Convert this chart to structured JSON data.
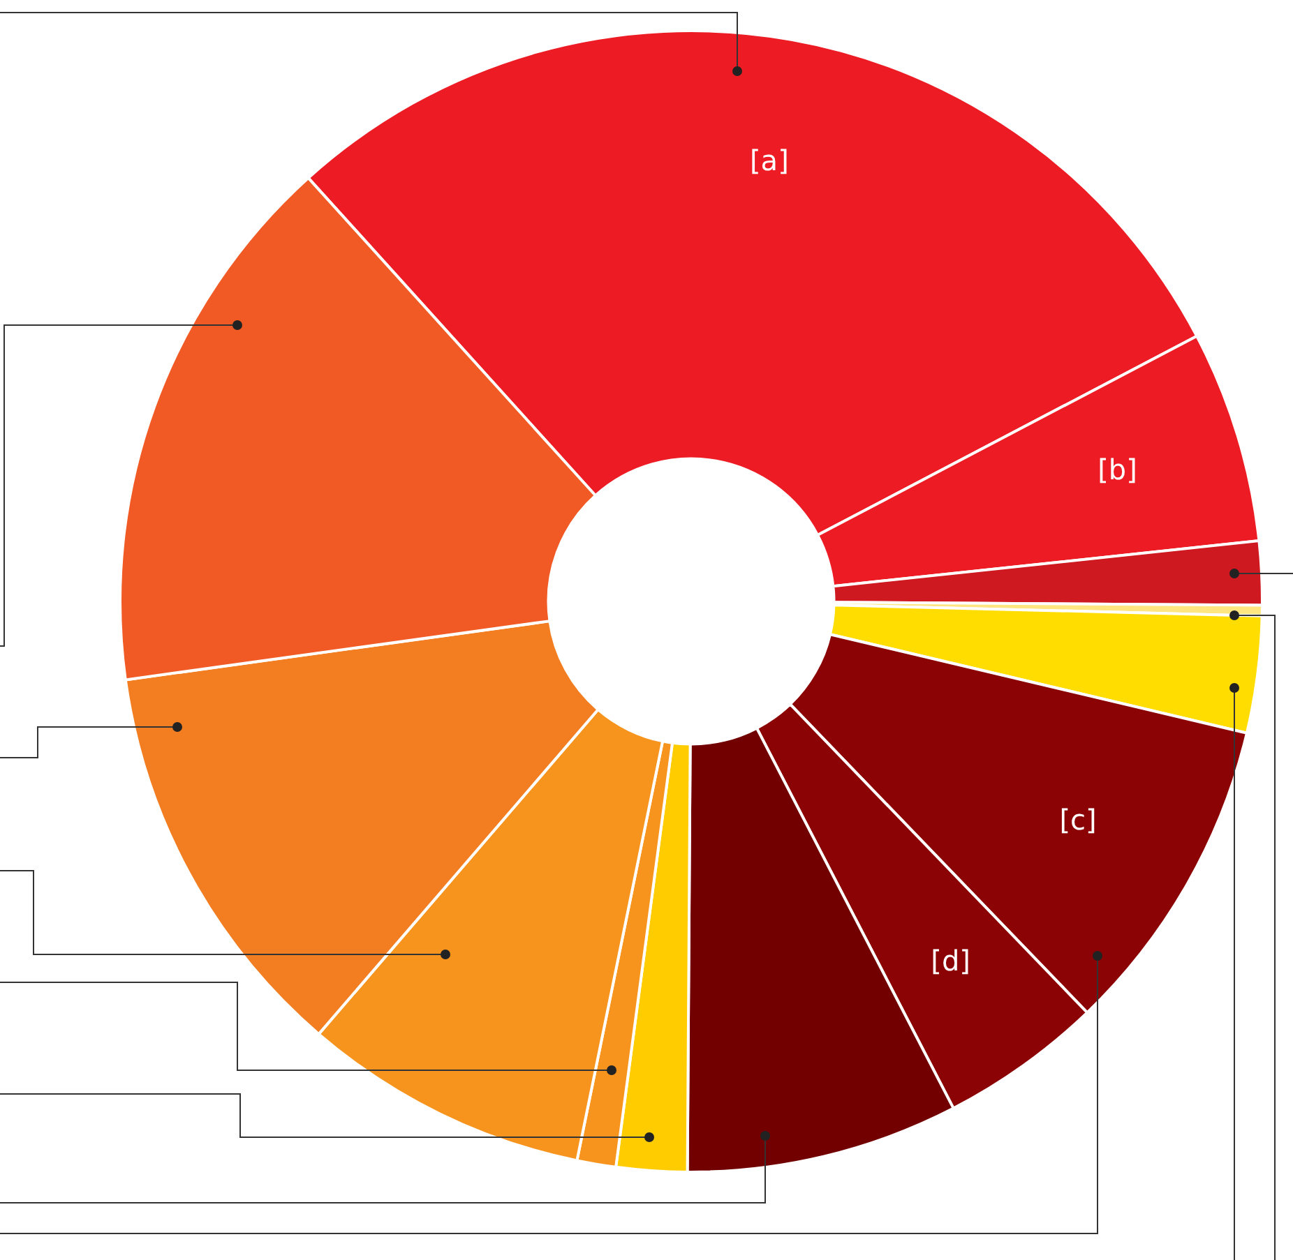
{
  "chart_data": {
    "type": "donut",
    "categories": [
      "[a]",
      "[b]",
      null,
      null,
      null,
      "[c]",
      "[d]",
      null,
      null,
      null,
      null,
      null,
      null
    ],
    "values": [
      29.0,
      6.0,
      1.8,
      0.3,
      3.3,
      9.1,
      4.6,
      7.7,
      2.0,
      1.1,
      8.1,
      11.5,
      15.5
    ],
    "colors": [
      "#ed1c24",
      "#ed1c24",
      "#cf1920",
      "#ffe680",
      "#ffdd00",
      "#8b0304",
      "#8b0304",
      "#720000",
      "#ffcc00",
      "#f7941d",
      "#f7941d",
      "#f37e21",
      "#f15a24"
    ]
  }
}
